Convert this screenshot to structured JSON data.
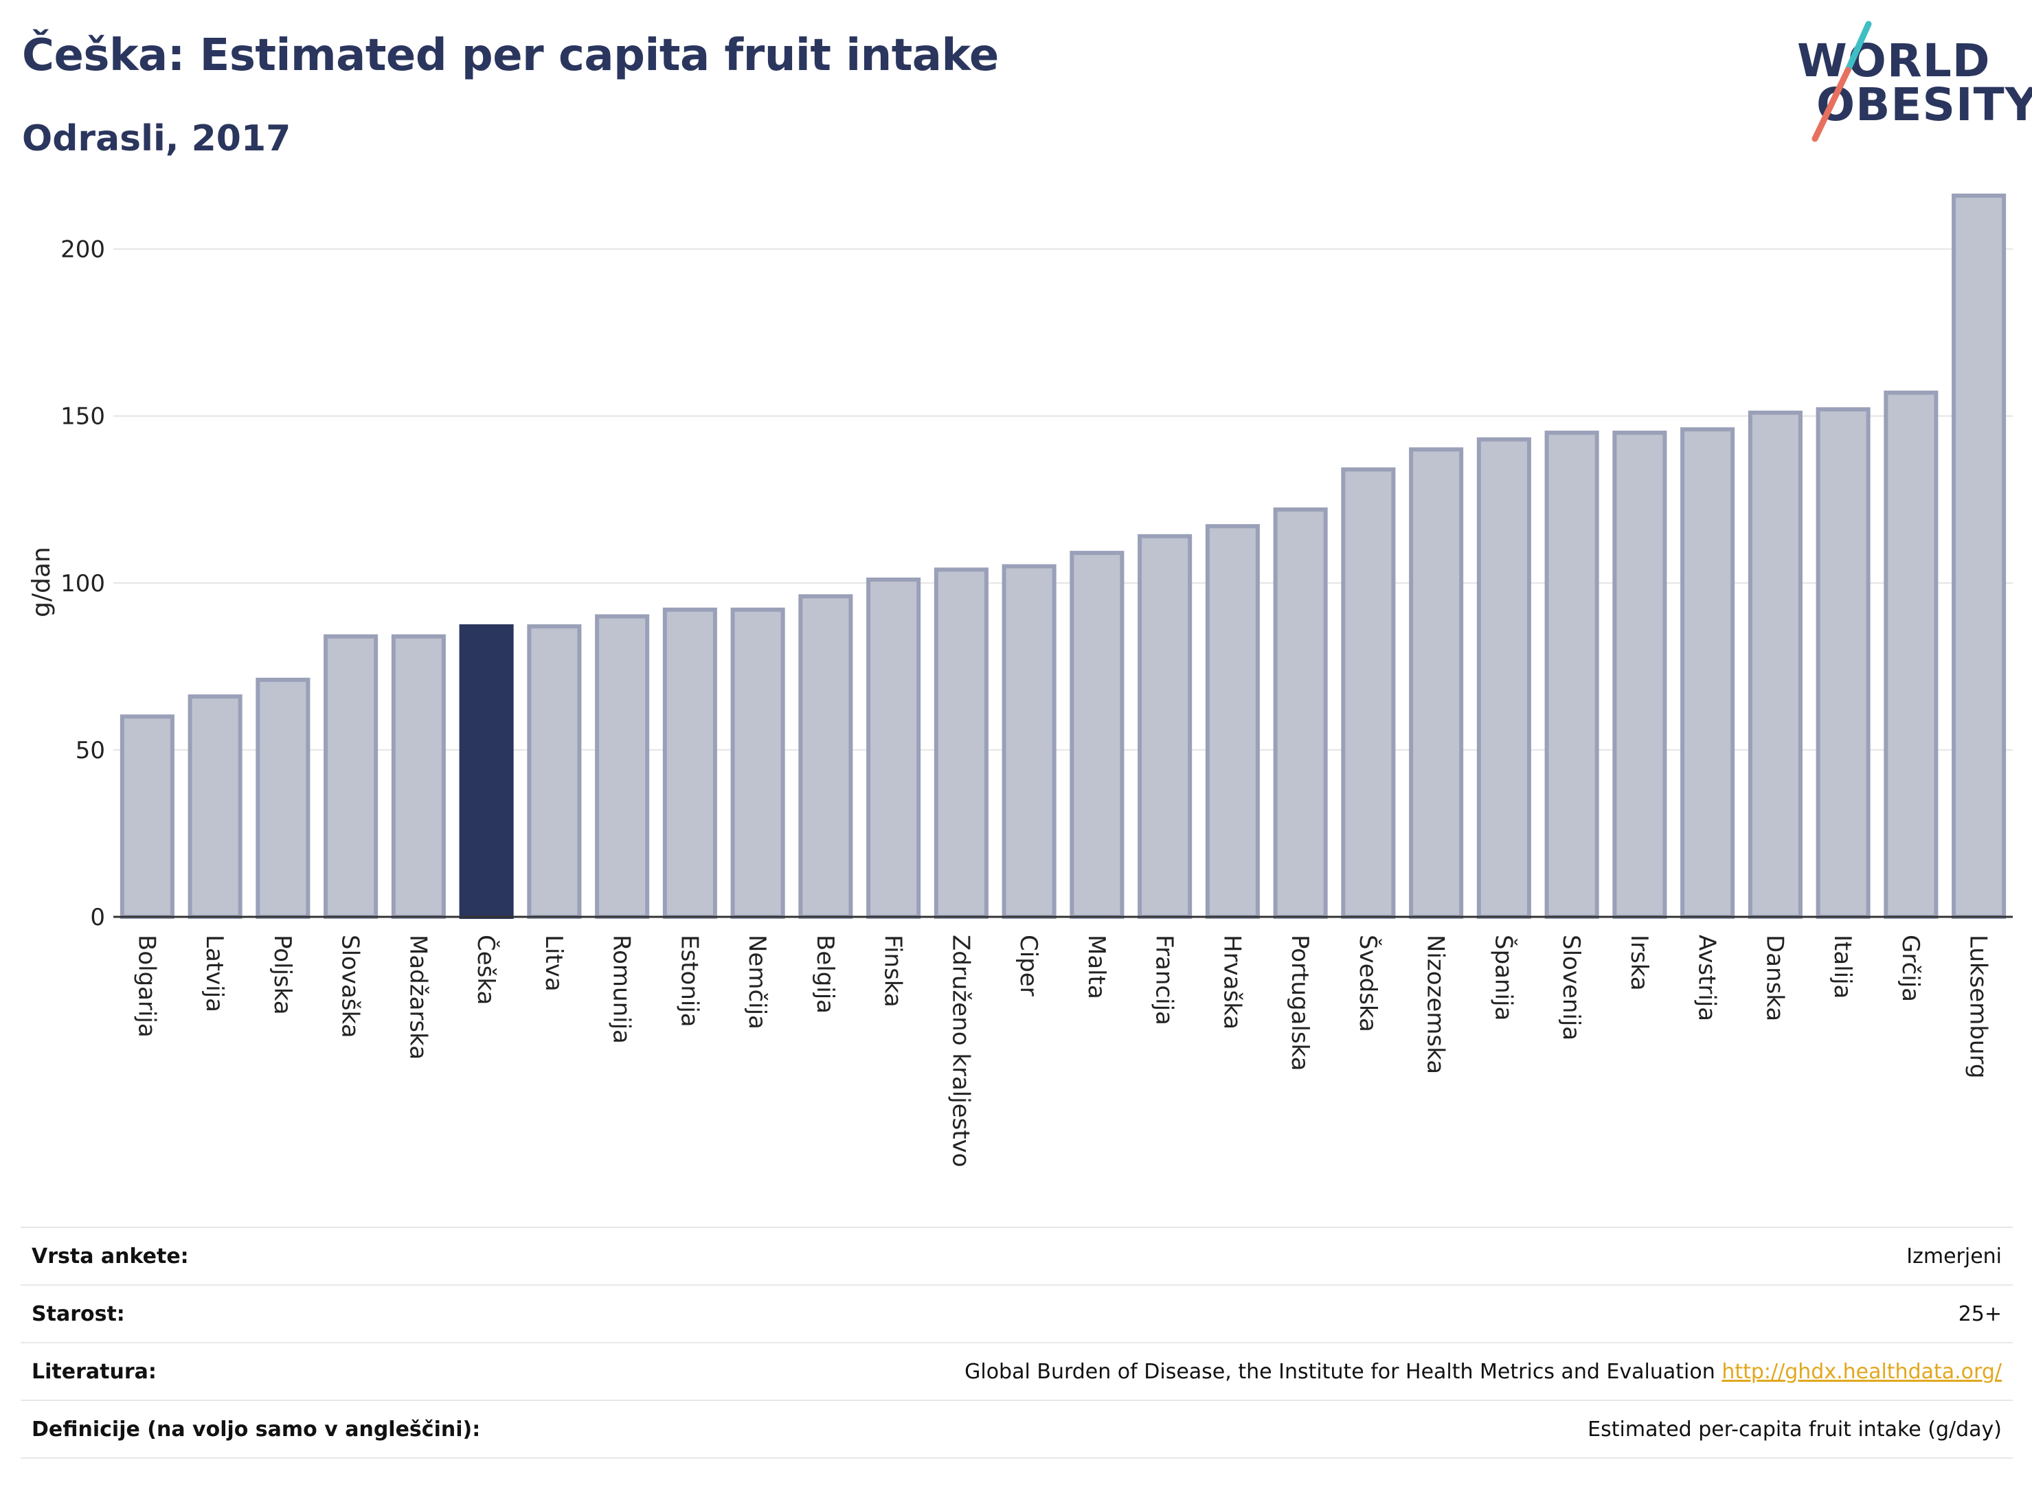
{
  "title": "Češka: Estimated per capita fruit intake",
  "subtitle": "Odrasli, 2017",
  "logo": {
    "line1": "WORLD",
    "line2": "OBESITY"
  },
  "colors": {
    "bar": "#bfc2cf",
    "bar_border": "#9aa0b8",
    "highlight": "#2b365e",
    "text": "#2b365e"
  },
  "chart_data": {
    "type": "bar",
    "title": "Češka: Estimated per capita fruit intake",
    "subtitle": "Odrasli, 2017",
    "xlabel": "",
    "ylabel": "g/dan",
    "ylim": [
      0,
      217
    ],
    "yticks": [
      0,
      50,
      100,
      150,
      200
    ],
    "grid": true,
    "highlight": "Češka",
    "categories": [
      "Bolgarija",
      "Latvija",
      "Poljska",
      "Slovaška",
      "Madžarska",
      "Češka",
      "Litva",
      "Romunija",
      "Estonija",
      "Nemčija",
      "Belgija",
      "Finska",
      "Združeno kraljestvo",
      "Ciper",
      "Malta",
      "Francija",
      "Hrvaška",
      "Portugalska",
      "Švedska",
      "Nizozemska",
      "Španija",
      "Slovenija",
      "Irska",
      "Avstrija",
      "Danska",
      "Italija",
      "Grčija",
      "Luksemburg"
    ],
    "values": [
      60,
      66,
      71,
      84,
      84,
      87,
      87,
      90,
      92,
      92,
      96,
      101,
      104,
      105,
      109,
      114,
      117,
      122,
      134,
      140,
      143,
      145,
      145,
      146,
      151,
      152,
      157,
      216
    ]
  },
  "meta": [
    {
      "key": "Vrsta ankete:",
      "value": "Izmerjeni"
    },
    {
      "key": "Starost:",
      "value": "25+"
    },
    {
      "key": "Literatura:",
      "value": "Global Burden of Disease, the Institute for Health Metrics and Evaluation",
      "link": "http://ghdx.healthdata.org/"
    },
    {
      "key": "Definicije (na voljo samo v angleščini):",
      "value": "Estimated per-capita fruit intake (g/day)"
    }
  ]
}
